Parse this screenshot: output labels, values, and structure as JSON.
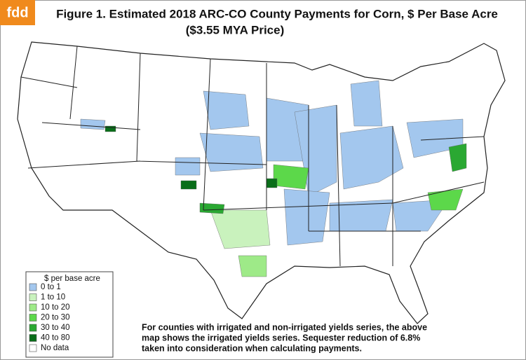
{
  "logo": "fdd",
  "title": [
    "Figure 1. Estimated 2018 ARC-CO County Payments for Corn, $ Per Base Acre",
    "($3.55 MYA Price)"
  ],
  "legend": {
    "title": "$ per base acre",
    "items": [
      {
        "label": "0 to 1",
        "color": "#a3c7ee"
      },
      {
        "label": "1 to 10",
        "color": "#c9f2bd"
      },
      {
        "label": "10 to 20",
        "color": "#9eea88"
      },
      {
        "label": "20 to 30",
        "color": "#5cd84a"
      },
      {
        "label": "30 to 40",
        "color": "#2aa832"
      },
      {
        "label": "40 to 80",
        "color": "#0a6e1a"
      },
      {
        "label": "No data",
        "color": "#ffffff"
      }
    ]
  },
  "note": [
    "For counties with irrigated and non-irrigated yields series, the above",
    "map shows the irrigated yields series.  Sequester reduction of 6.8%",
    "taken into consideration when calculating payments."
  ]
}
